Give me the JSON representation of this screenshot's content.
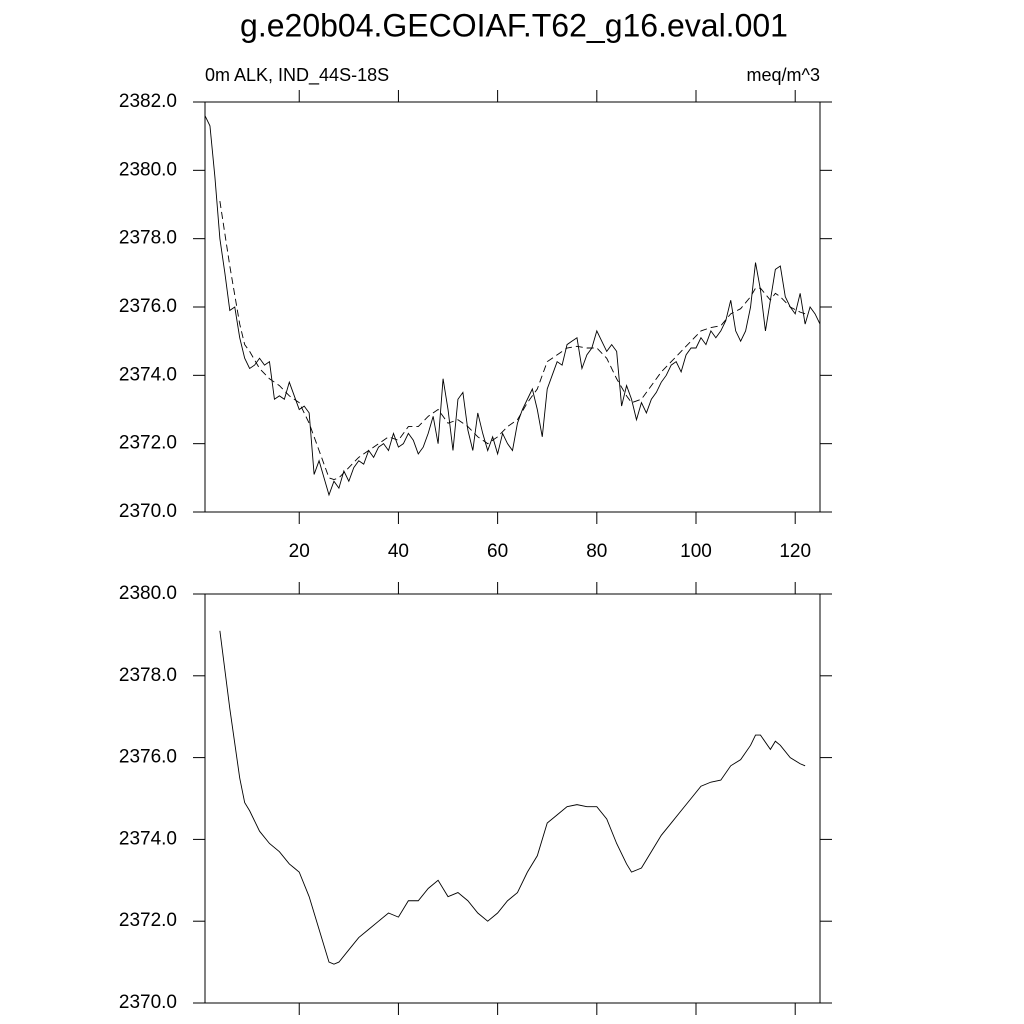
{
  "title": "g.e20b04.GECOIAF.T62_g16.eval.001",
  "chart_data": [
    {
      "type": "line",
      "left_label": "0m ALK, IND_44S-18S",
      "right_label": "meq/m^3",
      "xlim": [
        1,
        125
      ],
      "xticks": [
        20,
        40,
        60,
        80,
        100,
        120
      ],
      "xtick_labels": true,
      "ylim": [
        2370,
        2382
      ],
      "yticks": [
        {
          "value": 2370,
          "label": "2370.0"
        },
        {
          "value": 2372,
          "label": "2372.0"
        },
        {
          "value": 2374,
          "label": "2374.0"
        },
        {
          "value": 2376,
          "label": "2376.0"
        },
        {
          "value": 2378,
          "label": "2378.0"
        },
        {
          "value": 2380,
          "label": "2380.0"
        },
        {
          "value": 2382,
          "label": "2382.0"
        }
      ],
      "series": [
        {
          "color": "#000000",
          "style": "solid",
          "x": [
            1,
            2,
            3,
            4,
            5,
            6,
            7,
            8,
            9,
            10,
            11,
            12,
            13,
            14,
            15,
            16,
            17,
            18,
            19,
            20,
            21,
            22,
            23,
            24,
            25,
            26,
            27,
            28,
            29,
            30,
            31,
            32,
            33,
            34,
            35,
            36,
            37,
            38,
            39,
            40,
            41,
            42,
            43,
            44,
            45,
            46,
            47,
            48,
            49,
            50,
            51,
            52,
            53,
            54,
            55,
            56,
            57,
            58,
            59,
            60,
            61,
            62,
            63,
            64,
            65,
            66,
            67,
            68,
            69,
            70,
            71,
            72,
            73,
            74,
            75,
            76,
            77,
            78,
            79,
            80,
            81,
            82,
            83,
            84,
            85,
            86,
            87,
            88,
            89,
            90,
            91,
            92,
            93,
            94,
            95,
            96,
            97,
            98,
            99,
            100,
            101,
            102,
            103,
            104,
            105,
            106,
            107,
            108,
            109,
            110,
            111,
            112,
            113,
            114,
            115,
            116,
            117,
            118,
            119,
            120,
            121,
            122,
            123,
            124,
            125
          ],
          "values": [
            2381.6,
            2381.3,
            2379.8,
            2378.0,
            2377.0,
            2375.9,
            2376.0,
            2375.1,
            2374.5,
            2374.2,
            2374.3,
            2374.5,
            2374.3,
            2374.4,
            2373.3,
            2373.4,
            2373.3,
            2373.8,
            2373.4,
            2373.0,
            2373.1,
            2372.9,
            2371.1,
            2371.5,
            2371.0,
            2370.5,
            2370.9,
            2370.7,
            2371.2,
            2370.9,
            2371.3,
            2371.5,
            2371.4,
            2371.8,
            2371.6,
            2371.9,
            2372.0,
            2371.8,
            2372.3,
            2371.9,
            2372.0,
            2372.3,
            2372.1,
            2371.7,
            2371.9,
            2372.3,
            2372.8,
            2372.0,
            2373.9,
            2373.0,
            2371.8,
            2373.3,
            2373.5,
            2372.4,
            2371.8,
            2372.9,
            2372.3,
            2371.8,
            2372.2,
            2371.7,
            2372.3,
            2372.0,
            2371.8,
            2372.6,
            2373.0,
            2373.3,
            2373.6,
            2373.0,
            2372.2,
            2373.6,
            2374.0,
            2374.4,
            2374.3,
            2374.9,
            2375.0,
            2375.1,
            2374.2,
            2374.6,
            2374.8,
            2375.3,
            2375.0,
            2374.7,
            2374.9,
            2374.7,
            2373.1,
            2373.7,
            2373.3,
            2372.7,
            2373.2,
            2372.9,
            2373.3,
            2373.5,
            2373.8,
            2374.0,
            2374.3,
            2374.4,
            2374.1,
            2374.6,
            2374.8,
            2374.8,
            2375.1,
            2374.9,
            2375.3,
            2375.1,
            2375.3,
            2375.6,
            2376.2,
            2375.3,
            2375.0,
            2375.3,
            2376.0,
            2377.3,
            2376.5,
            2375.3,
            2376.2,
            2377.1,
            2377.2,
            2376.3,
            2376.0,
            2375.8,
            2376.4,
            2375.5,
            2376.0,
            2375.8,
            2375.5
          ]
        },
        {
          "color": "#000000",
          "style": "dashed",
          "x": [
            4,
            6,
            8,
            9,
            10,
            12,
            14,
            16,
            18,
            19,
            20,
            22,
            24,
            26,
            27,
            28,
            30,
            32,
            34,
            36,
            38,
            40,
            42,
            44,
            46,
            48,
            50,
            52,
            54,
            56,
            58,
            60,
            62,
            64,
            66,
            68,
            70,
            72,
            74,
            76,
            78,
            80,
            82,
            84,
            86,
            87,
            89,
            91,
            93,
            95,
            97,
            99,
            101,
            103,
            105,
            107,
            109,
            111,
            112,
            113,
            115,
            116,
            117,
            119,
            121,
            122
          ],
          "values": [
            2379.1,
            2377.2,
            2375.5,
            2374.9,
            2374.7,
            2374.2,
            2373.9,
            2373.7,
            2373.4,
            2373.3,
            2373.2,
            2372.6,
            2371.8,
            2371.0,
            2370.95,
            2371.0,
            2371.3,
            2371.6,
            2371.8,
            2372.0,
            2372.2,
            2372.1,
            2372.5,
            2372.5,
            2372.8,
            2373.0,
            2372.6,
            2372.7,
            2372.5,
            2372.2,
            2372.0,
            2372.2,
            2372.5,
            2372.7,
            2373.2,
            2373.6,
            2374.4,
            2374.6,
            2374.8,
            2374.85,
            2374.8,
            2374.8,
            2374.5,
            2373.9,
            2373.4,
            2373.2,
            2373.3,
            2373.7,
            2374.1,
            2374.4,
            2374.7,
            2375.0,
            2375.3,
            2375.4,
            2375.45,
            2375.8,
            2375.95,
            2376.3,
            2376.55,
            2376.55,
            2376.2,
            2376.4,
            2376.3,
            2376.0,
            2375.85,
            2375.8
          ]
        }
      ]
    },
    {
      "type": "line",
      "xlim": [
        1,
        125
      ],
      "xticks": [
        20,
        40,
        60,
        80,
        100,
        120
      ],
      "xtick_labels": false,
      "ylim": [
        2370,
        2380
      ],
      "yticks": [
        {
          "value": 2370,
          "label": "2370.0"
        },
        {
          "value": 2372,
          "label": "2372.0"
        },
        {
          "value": 2374,
          "label": "2374.0"
        },
        {
          "value": 2376,
          "label": "2376.0"
        },
        {
          "value": 2378,
          "label": "2378.0"
        },
        {
          "value": 2380,
          "label": "2380.0"
        }
      ],
      "series": [
        {
          "color": "#000000",
          "style": "solid",
          "x": [
            4,
            6,
            8,
            9,
            10,
            12,
            14,
            16,
            18,
            19,
            20,
            22,
            24,
            26,
            27,
            28,
            30,
            32,
            34,
            36,
            38,
            40,
            42,
            44,
            46,
            48,
            50,
            52,
            54,
            56,
            58,
            60,
            62,
            64,
            66,
            68,
            70,
            72,
            74,
            76,
            78,
            80,
            82,
            84,
            86,
            87,
            89,
            91,
            93,
            95,
            97,
            99,
            101,
            103,
            105,
            107,
            109,
            111,
            112,
            113,
            115,
            116,
            117,
            119,
            121,
            122
          ],
          "values": [
            2379.1,
            2377.2,
            2375.5,
            2374.9,
            2374.7,
            2374.2,
            2373.9,
            2373.7,
            2373.4,
            2373.3,
            2373.2,
            2372.6,
            2371.8,
            2371.0,
            2370.95,
            2371.0,
            2371.3,
            2371.6,
            2371.8,
            2372.0,
            2372.2,
            2372.1,
            2372.5,
            2372.5,
            2372.8,
            2373.0,
            2372.6,
            2372.7,
            2372.5,
            2372.2,
            2372.0,
            2372.2,
            2372.5,
            2372.7,
            2373.2,
            2373.6,
            2374.4,
            2374.6,
            2374.8,
            2374.85,
            2374.8,
            2374.8,
            2374.5,
            2373.9,
            2373.4,
            2373.2,
            2373.3,
            2373.7,
            2374.1,
            2374.4,
            2374.7,
            2375.0,
            2375.3,
            2375.4,
            2375.45,
            2375.8,
            2375.95,
            2376.3,
            2376.55,
            2376.55,
            2376.2,
            2376.4,
            2376.3,
            2376.0,
            2375.85,
            2375.8
          ]
        }
      ]
    }
  ]
}
